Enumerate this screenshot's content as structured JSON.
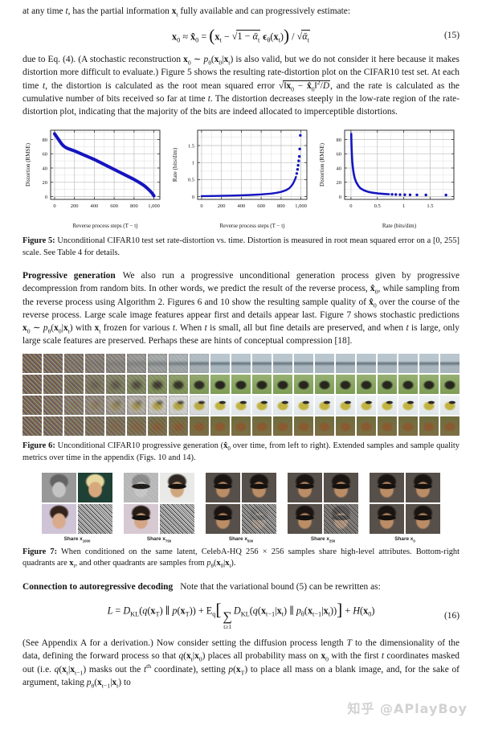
{
  "intro": [
    "at any time ",
    {
      "i": "t"
    },
    ", has the partial information ",
    {
      "b": "x"
    },
    {
      "sub": "t"
    },
    " fully available and can progressively estimate:"
  ],
  "eq15": {
    "segments": [
      {
        "b": "x"
      },
      {
        "sub": "0"
      },
      " ≈ ",
      {
        "b": "x̂"
      },
      {
        "sub": "0"
      },
      " = ",
      {
        "bigb": "("
      },
      {
        "b": "x"
      },
      {
        "sub": "t"
      },
      " − ",
      {
        "rad": [
          "1 − ",
          {
            "i": "ᾱ"
          },
          {
            "sub": "t"
          }
        ]
      },
      " ",
      {
        "b": "ϵ"
      },
      {
        "sub": "θ"
      },
      "(",
      {
        "b": "x"
      },
      {
        "sub": "t"
      },
      ")",
      {
        "bigb": ")"
      },
      " / ",
      {
        "rad": [
          {
            "i": "ᾱ"
          },
          {
            "sub": "t"
          }
        ]
      }
    ],
    "number": "(15)"
  },
  "para_rate": [
    "due to Eq. (4). (A stochastic reconstruction ",
    {
      "b": "x"
    },
    {
      "sub": "0"
    },
    " ∼ ",
    {
      "i": "p"
    },
    {
      "sub": "θ"
    },
    "(",
    {
      "b": "x"
    },
    {
      "sub": "0"
    },
    "|",
    {
      "b": "x"
    },
    {
      "sub": "t"
    },
    ") is also valid, but we do not consider it here because it makes distortion more difficult to evaluate.) Figure 5 shows the resulting rate-distortion plot on the CIFAR10 test set. At each time ",
    {
      "i": "t"
    },
    ", the distortion is calculated as the root mean squared error ",
    {
      "rad": [
        "‖",
        {
          "b": "x"
        },
        {
          "sub": "0"
        },
        " − ",
        {
          "b": "x̂"
        },
        {
          "sub": "0"
        },
        "‖",
        {
          "sup": "2"
        },
        "/",
        {
          "i": "D"
        }
      ]
    },
    ", and the rate is calculated as the cumulative number of bits received so far at time ",
    {
      "i": "t"
    },
    ". The distortion decreases steeply in the low-rate region of the rate-distortion plot, indicating that the majority of the bits are indeed allocated to imperceptible distortions."
  ],
  "chart_data": [
    {
      "type": "line",
      "title": "",
      "xlabel": "Reverse process steps (T − t)",
      "ylabel": "Distortion (RMSE)",
      "xlim": [
        -40,
        1060
      ],
      "ylim": [
        -4,
        93
      ],
      "xticks": [
        0,
        200,
        400,
        600,
        800,
        1000
      ],
      "xtick_labels": [
        "0",
        "200",
        "400",
        "600",
        "800",
        "1,000"
      ],
      "yticks": [
        0,
        20,
        40,
        60,
        80
      ],
      "ytick_labels": [
        "0",
        "20",
        "40",
        "60",
        "80"
      ],
      "xminor": 100,
      "yminor": 10,
      "grid": true,
      "color": "#1515c0",
      "lw": 4,
      "dot_r": 0,
      "line": [
        [
          0,
          88
        ],
        [
          15,
          85
        ],
        [
          30,
          82
        ],
        [
          50,
          78
        ],
        [
          70,
          74
        ],
        [
          90,
          71
        ],
        [
          110,
          69
        ],
        [
          130,
          67.5
        ],
        [
          160,
          66
        ],
        [
          200,
          64
        ],
        [
          250,
          61
        ],
        [
          300,
          58
        ],
        [
          350,
          55
        ],
        [
          400,
          52
        ],
        [
          450,
          48.5
        ],
        [
          500,
          45
        ],
        [
          550,
          41.5
        ],
        [
          600,
          38
        ],
        [
          650,
          34.5
        ],
        [
          700,
          31
        ],
        [
          750,
          27.5
        ],
        [
          800,
          24
        ],
        [
          850,
          20
        ],
        [
          900,
          15.5
        ],
        [
          930,
          12
        ],
        [
          960,
          8
        ],
        [
          980,
          5
        ],
        [
          1000,
          1
        ]
      ],
      "dots": []
    },
    {
      "type": "scatter",
      "title": "",
      "xlabel": "Reverse process steps (T − t)",
      "ylabel": "Rate (bits/dim)",
      "xlim": [
        -40,
        1060
      ],
      "ylim": [
        -0.08,
        1.95
      ],
      "xticks": [
        0,
        200,
        400,
        600,
        800,
        1000
      ],
      "xtick_labels": [
        "0",
        "200",
        "400",
        "600",
        "800",
        "1,000"
      ],
      "yticks": [
        0,
        0.5,
        1,
        1.5
      ],
      "ytick_labels": [
        "0",
        "0.5",
        "1",
        "1.5"
      ],
      "xminor": 100,
      "yminor": 0.25,
      "grid": true,
      "color": "#1515c0",
      "lw": 2.4,
      "dot_r": 1.7,
      "line": [
        [
          0,
          0.015
        ],
        [
          100,
          0.02
        ],
        [
          200,
          0.025
        ],
        [
          300,
          0.03
        ],
        [
          400,
          0.04
        ],
        [
          500,
          0.05
        ],
        [
          600,
          0.065
        ],
        [
          700,
          0.09
        ],
        [
          750,
          0.11
        ],
        [
          800,
          0.14
        ],
        [
          850,
          0.19
        ],
        [
          880,
          0.24
        ],
        [
          900,
          0.3
        ],
        [
          920,
          0.38
        ],
        [
          940,
          0.5
        ],
        [
          950,
          0.58
        ]
      ],
      "dots": [
        [
          958,
          0.68
        ],
        [
          966,
          0.8
        ],
        [
          972,
          0.92
        ],
        [
          978,
          1.05
        ],
        [
          984,
          1.18
        ],
        [
          988,
          1.4
        ],
        [
          994,
          1.8
        ]
      ]
    },
    {
      "type": "scatter",
      "title": "",
      "xlabel": "Rate (bits/dim)",
      "ylabel": "Distortion (RMSE)",
      "xlim": [
        -0.12,
        1.95
      ],
      "ylim": [
        -4,
        93
      ],
      "xticks": [
        0,
        0.5,
        1,
        1.5
      ],
      "xtick_labels": [
        "0",
        "0.5",
        "1",
        "1.5"
      ],
      "yticks": [
        0,
        20,
        40,
        60,
        80
      ],
      "ytick_labels": [
        "0",
        "20",
        "40",
        "60",
        "80"
      ],
      "xminor": 0.25,
      "yminor": 10,
      "grid": true,
      "color": "#1515c0",
      "lw": 2.6,
      "dot_r": 1.7,
      "line": [
        [
          0.005,
          88
        ],
        [
          0.008,
          78
        ],
        [
          0.012,
          68
        ],
        [
          0.018,
          58
        ],
        [
          0.025,
          49
        ],
        [
          0.035,
          41
        ],
        [
          0.05,
          33
        ],
        [
          0.07,
          26
        ],
        [
          0.1,
          20
        ],
        [
          0.14,
          15
        ],
        [
          0.18,
          11.5
        ],
        [
          0.25,
          8.5
        ],
        [
          0.33,
          6.5
        ],
        [
          0.42,
          5.2
        ],
        [
          0.52,
          4.3
        ],
        [
          0.62,
          3.7
        ],
        [
          0.72,
          3.2
        ]
      ],
      "dots": [
        [
          0.78,
          3
        ],
        [
          0.85,
          2.8
        ],
        [
          0.93,
          2.6
        ],
        [
          1.02,
          2.5
        ],
        [
          1.12,
          2.4
        ],
        [
          1.25,
          2.3
        ],
        [
          1.42,
          2.2
        ],
        [
          1.8,
          2.1
        ]
      ]
    }
  ],
  "fig5_caption": [
    {
      "b": "Figure 5:"
    },
    " Unconditional CIFAR10 test set rate-distortion vs. time. Distortion is measured in root mean squared error on a [0, 255] scale. See Table 4 for details."
  ],
  "prog": [
    {
      "head": "Progressive generation"
    },
    "We also run a progressive unconditional generation process given by progressive decompression from random bits. In other words, we predict the result of the reverse process, ",
    {
      "b": "x̂"
    },
    {
      "sub": "0"
    },
    ", while sampling from the reverse process using Algorithm 2. Figures 6 and 10 show the resulting sample quality of ",
    {
      "b": "x̂"
    },
    {
      "sub": "0"
    },
    " over the course of the reverse process. Large scale image features appear first and details appear last. Figure 7 shows stochastic predictions ",
    {
      "b": "x"
    },
    {
      "sub": "0"
    },
    " ∼ ",
    {
      "i": "p"
    },
    {
      "sub": "θ"
    },
    "(",
    {
      "b": "x"
    },
    {
      "sub": "0"
    },
    "|",
    {
      "b": "x"
    },
    {
      "sub": "t"
    },
    ") with ",
    {
      "b": "x"
    },
    {
      "sub": "t"
    },
    " frozen for various ",
    {
      "i": "t"
    },
    ". When ",
    {
      "i": "t"
    },
    " is small, all but fine details are preserved, and when ",
    {
      "i": "t"
    },
    " is large, only large scale features are preserved. Perhaps these are hints of conceptual compression [18]."
  ],
  "figure6": {
    "cols": 21,
    "rows": [
      {
        "name": "airplane-harbor-scene",
        "kind": "scene",
        "sky": "#b9c6ce",
        "mid": "#65747e",
        "ground": "#a9b5bc"
      },
      {
        "name": "dark-bird-on-grass",
        "kind": "blob",
        "bg_top": "#97b072",
        "bg_bottom": "#7d9c55",
        "subject": "#26261e"
      },
      {
        "name": "yellow-plane-white-sky",
        "kind": "blob",
        "bg_top": "#eef1f3",
        "bg_bottom": "#dfe5e8",
        "subject": "#c2b23f",
        "accent": "#2c2c2c"
      },
      {
        "name": "brown-frog-olive",
        "kind": "blob",
        "bg_top": "#6e6c3e",
        "bg_bottom": "#7d6f45",
        "subject": "#8a5a30"
      }
    ],
    "caption": [
      {
        "b": "Figure 6:"
      },
      " Unconditional CIFAR10 progressive generation (",
      {
        "b": "x̂"
      },
      {
        "sub": "0"
      },
      " over time, from left to right). Extended samples and sample quality metrics over time in the appendix (Figs. 10 and 14)."
    ]
  },
  "figure7": {
    "share_label": "Share x",
    "groups": [
      {
        "sub": "1000",
        "quads": [
          {
            "bg": "#989898",
            "skin": "#c4c4c4",
            "hair": "#636363",
            "glasses": false,
            "noise": 0
          },
          {
            "bg": "#1f4034",
            "skin": "#d7a87b",
            "hair": "#e6d79e",
            "glasses": false,
            "noise": 0
          },
          {
            "bg": "#cfc3d6",
            "skin": "#d9ab8d",
            "hair": "#33231a",
            "glasses": false,
            "noise": 0
          },
          {
            "noise": 1
          }
        ]
      },
      {
        "sub": "750",
        "quads": [
          {
            "bg": "#bdbdbd",
            "skin": "#cccccc",
            "hair": "#8a8a8a",
            "glasses": true,
            "noise": 0.1
          },
          {
            "bg": "#e9e9e7",
            "skin": "#cfa77e",
            "hair": "#2f2822",
            "glasses": true,
            "noise": 0
          },
          {
            "bg": "#d6c9d2",
            "skin": "#d4a585",
            "hair": "#261c15",
            "glasses": true,
            "noise": 0
          },
          {
            "noise": 1
          }
        ]
      },
      {
        "sub": "500",
        "quads": [
          {
            "bg": "#57504a",
            "skin": "#bb8d66",
            "hair": "#1a1512",
            "glasses": true,
            "noise": 0
          },
          {
            "bg": "#57504a",
            "skin": "#bb8d66",
            "hair": "#1a1512",
            "glasses": true,
            "noise": 0
          },
          {
            "bg": "#57504a",
            "skin": "#bb8d66",
            "hair": "#1a1512",
            "glasses": true,
            "noise": 0
          },
          {
            "bg": "#57504a",
            "skin": "#bb8d66",
            "hair": "#1a1512",
            "glasses": true,
            "noise": 0.8
          }
        ]
      },
      {
        "sub": "250",
        "quads": [
          {
            "bg": "#57504a",
            "skin": "#bb8d66",
            "hair": "#1a1512",
            "glasses": true,
            "noise": 0
          },
          {
            "bg": "#57504a",
            "skin": "#bb8d66",
            "hair": "#1a1512",
            "glasses": true,
            "noise": 0
          },
          {
            "bg": "#57504a",
            "skin": "#bb8d66",
            "hair": "#1a1512",
            "glasses": true,
            "noise": 0
          },
          {
            "bg": "#57504a",
            "skin": "#bb8d66",
            "hair": "#1a1512",
            "glasses": true,
            "noise": 0.5
          }
        ]
      },
      {
        "sub": "0",
        "quads": [
          {
            "bg": "#57504a",
            "skin": "#bb8d66",
            "hair": "#1a1512",
            "glasses": true,
            "noise": 0
          },
          {
            "bg": "#57504a",
            "skin": "#bb8d66",
            "hair": "#1a1512",
            "glasses": true,
            "noise": 0
          },
          {
            "bg": "#57504a",
            "skin": "#bb8d66",
            "hair": "#1a1512",
            "glasses": true,
            "noise": 0
          },
          {
            "bg": "#57504a",
            "skin": "#bb8d66",
            "hair": "#1a1512",
            "glasses": true,
            "noise": 0
          }
        ]
      }
    ],
    "caption": [
      {
        "b": "Figure 7:"
      },
      " When conditioned on the same latent, CelebA-HQ 256 × 256 samples share high-level attributes. Bottom-right quadrants are ",
      {
        "b": "x"
      },
      {
        "sub": "t"
      },
      ", and other quadrants are samples from ",
      {
        "i": "p"
      },
      {
        "sub": "θ"
      },
      "(",
      {
        "b": "x"
      },
      {
        "sub": "0"
      },
      "|",
      {
        "b": "x"
      },
      {
        "sub": "t"
      },
      ")."
    ]
  },
  "conn": [
    {
      "head": "Connection to autoregressive decoding"
    },
    "Note that the variational bound (5) can be rewritten as:"
  ],
  "eq16": {
    "segments": [
      {
        "i": "L"
      },
      " = ",
      {
        "i": "D"
      },
      {
        "sub": "KL"
      },
      "(",
      {
        "i": "q"
      },
      "(",
      {
        "b": "x"
      },
      {
        "sub": "T"
      },
      ") ∥ ",
      {
        "i": "p"
      },
      "(",
      {
        "b": "x"
      },
      {
        "sub": "T"
      },
      ")) + E",
      {
        "sub": "q"
      },
      {
        "bigb": "["
      },
      {
        "sum": "t≥1"
      },
      {
        "i": "D"
      },
      {
        "sub": "KL"
      },
      "(",
      {
        "i": "q"
      },
      "(",
      {
        "b": "x"
      },
      {
        "sub": "t−1"
      },
      "|",
      {
        "b": "x"
      },
      {
        "sub": "t"
      },
      ") ∥ ",
      {
        "i": "p"
      },
      {
        "sub": "θ"
      },
      "(",
      {
        "b": "x"
      },
      {
        "sub": "t−1"
      },
      "|",
      {
        "b": "x"
      },
      {
        "sub": "t"
      },
      "))",
      {
        "bigb": "]"
      },
      " + ",
      {
        "i": "H"
      },
      "(",
      {
        "b": "x"
      },
      {
        "sub": "0"
      },
      ")"
    ],
    "number": "(16)"
  },
  "final": [
    "(See Appendix A for a derivation.) Now consider setting the diffusion process length ",
    {
      "i": "T"
    },
    " to the dimensionality of the data, defining the forward process so that ",
    {
      "i": "q"
    },
    "(",
    {
      "b": "x"
    },
    {
      "sub": "t"
    },
    "|",
    {
      "b": "x"
    },
    {
      "sub": "0"
    },
    ") places all probability mass on ",
    {
      "b": "x"
    },
    {
      "sub": "0"
    },
    " with the first ",
    {
      "i": "t"
    },
    " coordinates masked out (i.e. ",
    {
      "i": "q"
    },
    "(",
    {
      "b": "x"
    },
    {
      "sub": "t"
    },
    "|",
    {
      "b": "x"
    },
    {
      "sub": "t−1"
    },
    ") masks out the ",
    {
      "i": "t"
    },
    {
      "sup": "th"
    },
    " coordinate), setting ",
    {
      "i": "p"
    },
    "(",
    {
      "b": "x"
    },
    {
      "sub": "T"
    },
    ") to place all mass on a blank image, and, for the sake of argument, taking ",
    {
      "i": "p"
    },
    {
      "sub": "θ"
    },
    "(",
    {
      "b": "x"
    },
    {
      "sub": "t−1"
    },
    "|",
    {
      "b": "x"
    },
    {
      "sub": "t"
    },
    ") to"
  ],
  "watermark": {
    "text": "知乎 @APlayBoy",
    "color": "#cbcbcb"
  }
}
